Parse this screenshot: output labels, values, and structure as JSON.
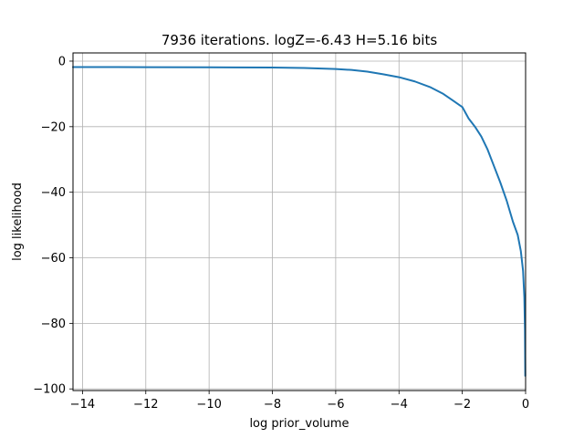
{
  "chart_data": {
    "type": "line",
    "title": "7936 iterations. logZ=-6.43 H=5.16 bits",
    "xlabel": "log prior_volume",
    "ylabel": "log likelihood",
    "xlim": [
      -14.3,
      0.0
    ],
    "ylim": [
      -100.5,
      2.5
    ],
    "grid": true,
    "x_ticks": [
      -14,
      -12,
      -10,
      -8,
      -6,
      -4,
      -2,
      0
    ],
    "x_tick_labels": [
      "−14",
      "−12",
      "−10",
      "−8",
      "−6",
      "−4",
      "−2",
      "0"
    ],
    "y_ticks": [
      0,
      -20,
      -40,
      -60,
      -80,
      -100
    ],
    "y_tick_labels": [
      "0",
      "−20",
      "−40",
      "−60",
      "−80",
      "−100"
    ],
    "series": [
      {
        "color": "#1f77b4",
        "x": [
          -14.3,
          -12,
          -10,
          -8,
          -7,
          -6,
          -5.5,
          -5,
          -4.5,
          -4,
          -3.5,
          -3,
          -2.6,
          -2.3,
          -2.0,
          -1.8,
          -1.6,
          -1.4,
          -1.2,
          -1.0,
          -0.8,
          -0.6,
          -0.4,
          -0.25,
          -0.15,
          -0.08,
          -0.04,
          -0.02,
          -0.01
        ],
        "y": [
          -1.8,
          -1.85,
          -1.9,
          -1.95,
          -2.1,
          -2.4,
          -2.7,
          -3.2,
          -4.0,
          -4.9,
          -6.2,
          -8.0,
          -10.0,
          -12.0,
          -14.0,
          -17.5,
          -20.0,
          -23.0,
          -27.0,
          -32.0,
          -37.0,
          -42.5,
          -49.0,
          -53.0,
          -58.0,
          -64.0,
          -72.0,
          -82.0,
          -96.0
        ]
      }
    ]
  }
}
